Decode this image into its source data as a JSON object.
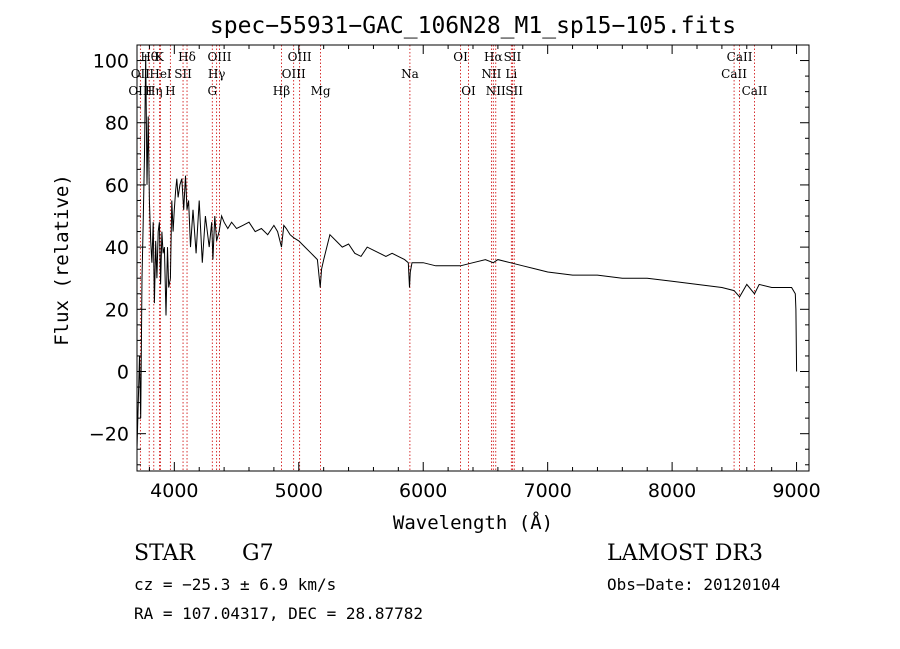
{
  "chart_data": {
    "type": "line",
    "title": "spec−55931−GAC_106N28_M1_sp15−105.fits",
    "xlabel": "Wavelength (Å)",
    "ylabel": "Flux (relative)",
    "xlim": [
      3700,
      9100
    ],
    "ylim": [
      -32,
      105
    ],
    "xticks": [
      4000,
      5000,
      6000,
      7000,
      8000,
      9000
    ],
    "yticks": [
      -20,
      0,
      20,
      40,
      60,
      80,
      100
    ],
    "grid": false,
    "series": [
      {
        "name": "flux",
        "x": [
          3700,
          3720,
          3730,
          3740,
          3750,
          3760,
          3770,
          3780,
          3790,
          3800,
          3810,
          3820,
          3830,
          3840,
          3850,
          3860,
          3870,
          3880,
          3890,
          3900,
          3910,
          3920,
          3933,
          3945,
          3955,
          3968,
          3980,
          3990,
          4000,
          4010,
          4020,
          4030,
          4045,
          4060,
          4075,
          4090,
          4102,
          4115,
          4130,
          4150,
          4175,
          4200,
          4225,
          4250,
          4280,
          4300,
          4310,
          4325,
          4340,
          4360,
          4380,
          4400,
          4430,
          4460,
          4500,
          4550,
          4600,
          4650,
          4700,
          4750,
          4800,
          4830,
          4861,
          4880,
          4900,
          4930,
          4960,
          5000,
          5050,
          5100,
          5150,
          5172,
          5183,
          5200,
          5250,
          5300,
          5350,
          5400,
          5450,
          5500,
          5550,
          5600,
          5650,
          5700,
          5750,
          5800,
          5850,
          5880,
          5890,
          5896,
          5910,
          5950,
          6000,
          6100,
          6200,
          6300,
          6400,
          6500,
          6563,
          6600,
          6700,
          6800,
          6900,
          7000,
          7200,
          7400,
          7600,
          7800,
          8000,
          8200,
          8400,
          8498,
          8542,
          8600,
          8662,
          8700,
          8800,
          8900,
          8960,
          8990,
          8995,
          9000
        ],
        "values": [
          -25,
          5,
          -15,
          30,
          48,
          70,
          102,
          60,
          82,
          55,
          42,
          35,
          48,
          22,
          42,
          30,
          45,
          48,
          28,
          45,
          38,
          40,
          18,
          40,
          27,
          30,
          55,
          45,
          52,
          58,
          62,
          56,
          60,
          62,
          52,
          63,
          52,
          55,
          40,
          52,
          38,
          55,
          35,
          50,
          40,
          48,
          36,
          50,
          42,
          45,
          50,
          48,
          46,
          48,
          46,
          47,
          48,
          45,
          46,
          44,
          47,
          45,
          40,
          47,
          46,
          44,
          43,
          42,
          40,
          38,
          36,
          27,
          33,
          36,
          44,
          42,
          40,
          41,
          38,
          37,
          40,
          39,
          38,
          37,
          38,
          37,
          36,
          35,
          27,
          32,
          35,
          35,
          35,
          34,
          34,
          34,
          35,
          36,
          35,
          36,
          35,
          34,
          33,
          32,
          31,
          31,
          30,
          30,
          29,
          28,
          27,
          26,
          24,
          28,
          25,
          28,
          27,
          27,
          27,
          25,
          20,
          0
        ]
      }
    ],
    "spectral_lines": [
      {
        "label": "Hθ",
        "x": 3798,
        "row": 1
      },
      {
        "label": "K",
        "x": 3880,
        "row": 1
      },
      {
        "label": "Hδ",
        "x": 4102,
        "row": 1
      },
      {
        "label": "OIII",
        "x": 4363,
        "row": 1
      },
      {
        "label": "OIII",
        "x": 5007,
        "row": 1
      },
      {
        "label": "OI",
        "x": 6300,
        "row": 1
      },
      {
        "label": "Hα",
        "x": 6563,
        "row": 1
      },
      {
        "label": "SII",
        "x": 6717,
        "row": 1
      },
      {
        "label": "CaII",
        "x": 8542,
        "row": 1
      },
      {
        "label": "OII",
        "x": 3727,
        "row": 2
      },
      {
        "label": "HeI",
        "x": 3889,
        "row": 2
      },
      {
        "label": "SII",
        "x": 4070,
        "row": 2
      },
      {
        "label": "Hγ",
        "x": 4340,
        "row": 2
      },
      {
        "label": "OIII",
        "x": 4959,
        "row": 2
      },
      {
        "label": "Na",
        "x": 5893,
        "row": 2
      },
      {
        "label": "NII",
        "x": 6548,
        "row": 2
      },
      {
        "label": "Li",
        "x": 6708,
        "row": 2
      },
      {
        "label": "CaII",
        "x": 8498,
        "row": 2
      },
      {
        "label": "OIII",
        "x": 3727,
        "row": 3
      },
      {
        "label": "Hη",
        "x": 3835,
        "row": 3
      },
      {
        "label": "H",
        "x": 3968,
        "row": 3
      },
      {
        "label": "G",
        "x": 4305,
        "row": 3
      },
      {
        "label": "Hβ",
        "x": 4861,
        "row": 3
      },
      {
        "label": "Mg",
        "x": 5175,
        "row": 3
      },
      {
        "label": "OI",
        "x": 6364,
        "row": 3
      },
      {
        "label": "NII",
        "x": 6583,
        "row": 3
      },
      {
        "label": "SII",
        "x": 6731,
        "row": 3
      },
      {
        "label": "CaII",
        "x": 8662,
        "row": 3
      }
    ]
  },
  "info": {
    "class": "STAR",
    "subclass": "G7",
    "survey": "LAMOST DR3",
    "cz": "cz = −25.3 ± 6.9 km/s",
    "obs_date": "Obs−Date: 20120104",
    "radec": "RA = 107.04317, DEC =  28.87782"
  },
  "colors": {
    "line": "#000000",
    "marker": "#cc0000"
  }
}
